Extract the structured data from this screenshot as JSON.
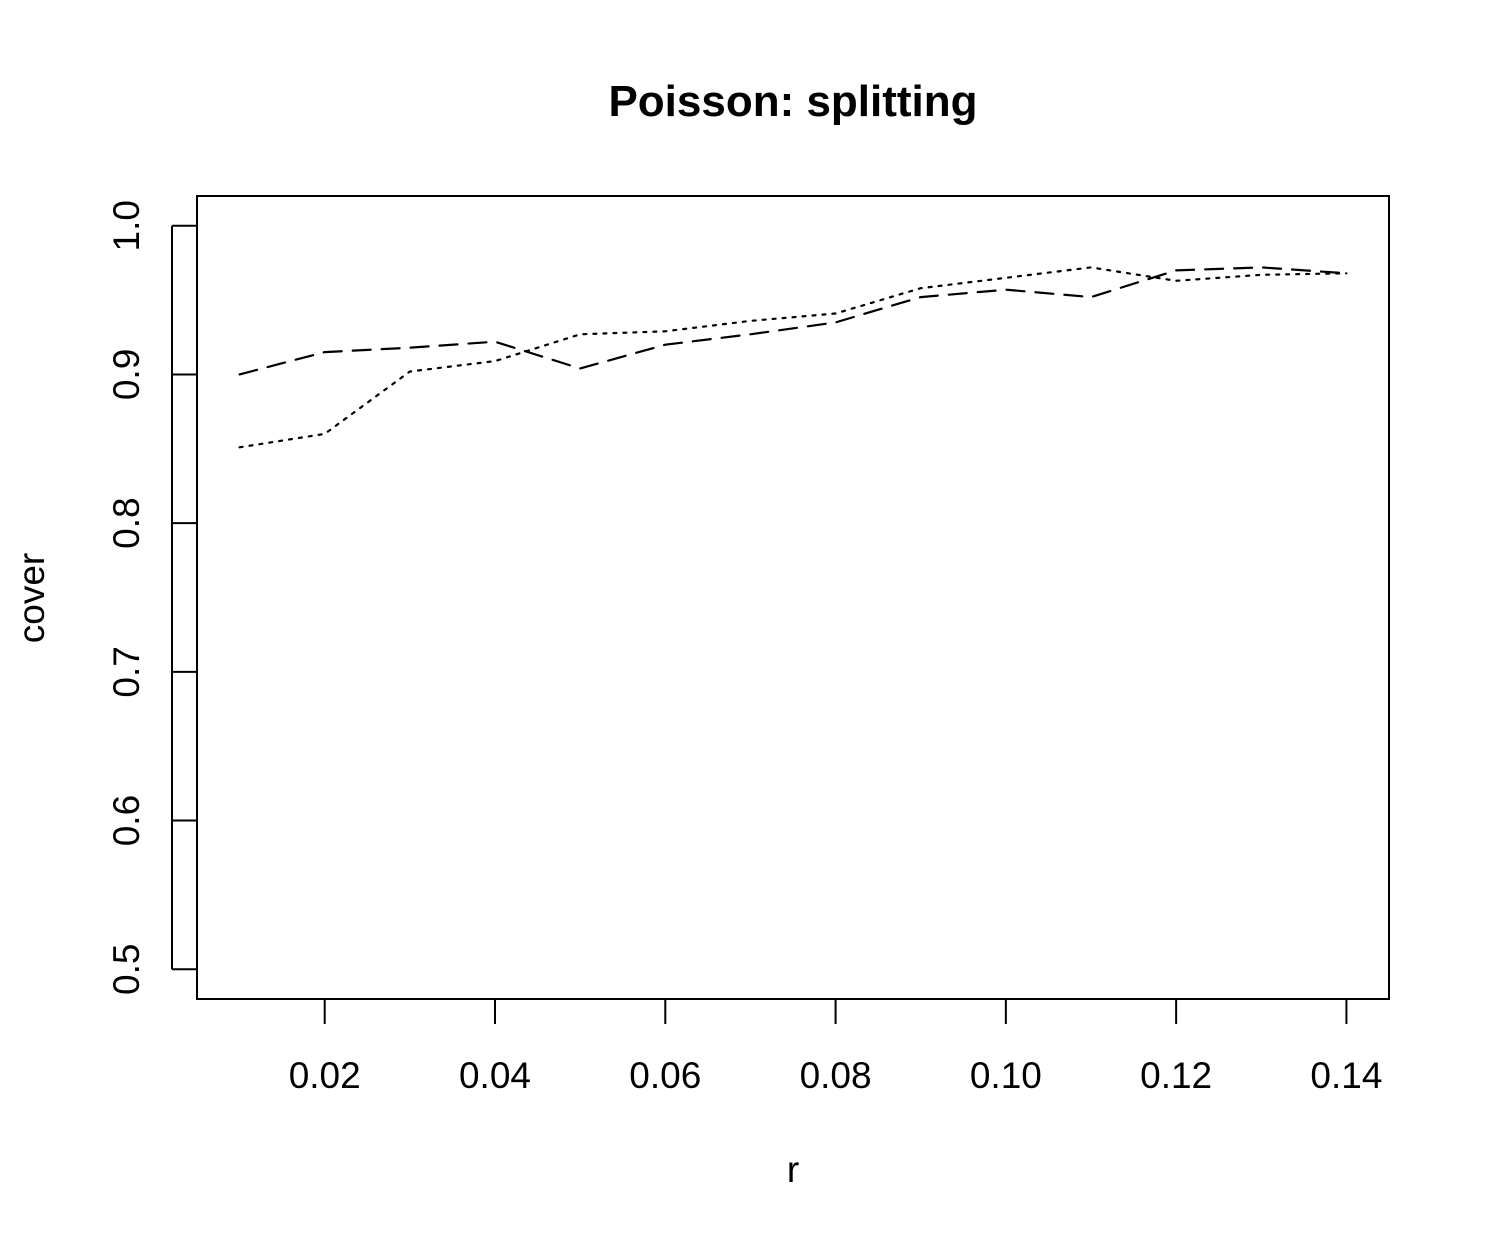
{
  "chart_data": {
    "type": "line",
    "title": "Poisson: splitting",
    "xlabel": "r",
    "ylabel": "cover",
    "xlim": [
      0.005,
      0.145
    ],
    "ylim": [
      0.48,
      1.02
    ],
    "x_ticks": [
      0.02,
      0.04,
      0.06,
      0.08,
      0.1,
      0.12,
      0.14
    ],
    "x_tick_labels": [
      "0.02",
      "0.04",
      "0.06",
      "0.08",
      "0.10",
      "0.12",
      "0.14"
    ],
    "y_ticks": [
      0.5,
      0.6,
      0.7,
      0.8,
      0.9,
      1.0
    ],
    "y_tick_labels": [
      "0.5",
      "0.6",
      "0.7",
      "0.8",
      "0.9",
      "1.0"
    ],
    "grid": false,
    "legend": "none",
    "x": [
      0.01,
      0.02,
      0.03,
      0.04,
      0.05,
      0.06,
      0.07,
      0.08,
      0.09,
      0.1,
      0.11,
      0.12,
      0.13,
      0.14
    ],
    "series": [
      {
        "line_style": "dashed",
        "color": "#000000",
        "values": [
          0.9,
          0.915,
          0.918,
          0.922,
          0.904,
          0.92,
          0.927,
          0.935,
          0.952,
          0.957,
          0.952,
          0.97,
          0.972,
          0.968
        ]
      },
      {
        "line_style": "dotted",
        "color": "#000000",
        "values": [
          0.851,
          0.86,
          0.902,
          0.909,
          0.927,
          0.929,
          0.936,
          0.941,
          0.958,
          0.965,
          0.972,
          0.963,
          0.967,
          0.968
        ]
      }
    ]
  }
}
